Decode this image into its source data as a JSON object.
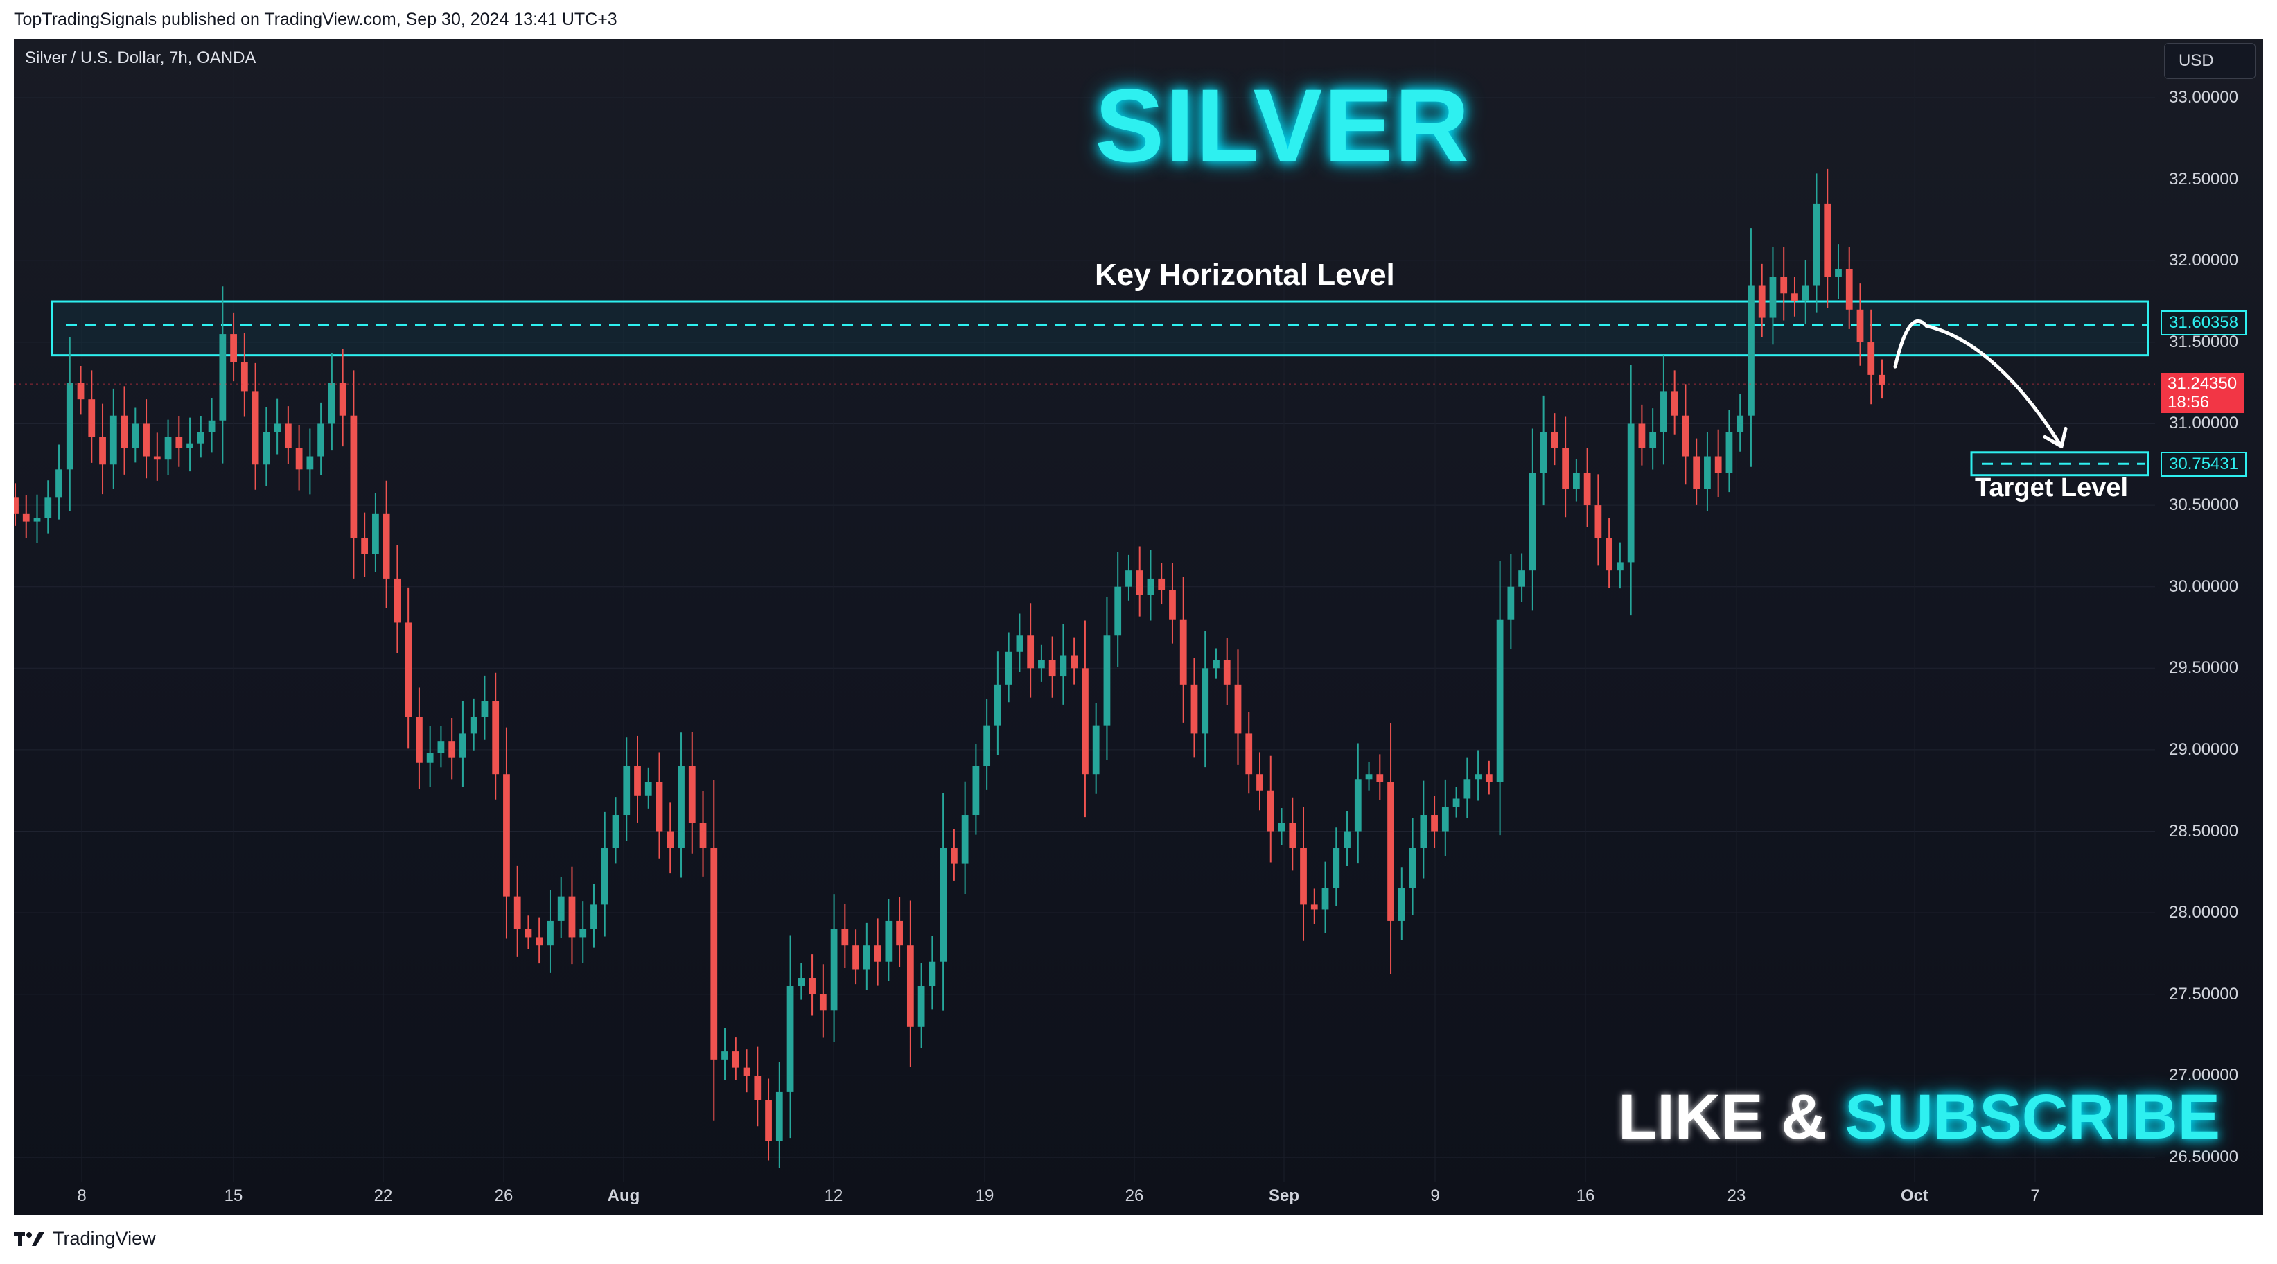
{
  "header": {
    "publish_text": "TopTradingSignals published on TradingView.com, Sep 30, 2024 13:41 UTC+3"
  },
  "chart": {
    "symbol_label": "Silver / U.S. Dollar, 7h, OANDA",
    "currency": "USD",
    "title": "SILVER",
    "key_level_label": "Key Horizontal Level",
    "target_label": "Target Level",
    "cta_white": "LIKE & ",
    "cta_cyan": "SUBSCRIBE",
    "last_price": "31.24350",
    "countdown": "18:56",
    "key_level_price": "31.60358",
    "target_price": "30.75431",
    "colors": {
      "up": "#26a69a",
      "down": "#ef5350",
      "accent": "#2ef0f0",
      "background": "#131722"
    }
  },
  "footer": {
    "logo_text": "TradingView"
  },
  "chart_data": {
    "type": "candlestick",
    "title": "SILVER",
    "symbol": "Silver / U.S. Dollar, 7h, OANDA",
    "ylim": [
      26.4,
      33.3
    ],
    "y_ticks": [
      "33.00000",
      "32.50000",
      "32.00000",
      "31.50000",
      "31.00000",
      "30.50000",
      "30.00000",
      "29.50000",
      "29.00000",
      "28.50000",
      "28.00000",
      "27.50000",
      "27.00000",
      "26.50000"
    ],
    "x_ticks": [
      "8",
      "15",
      "22",
      "26",
      "Aug",
      "12",
      "19",
      "26",
      "Sep",
      "9",
      "16",
      "23",
      "Oct",
      "7"
    ],
    "key_level": 31.60358,
    "key_zone": [
      31.42,
      31.75
    ],
    "target_level": 30.75431,
    "last_price": 31.2435,
    "series": [
      {
        "name": "",
        "close": [
          30.45,
          30.4,
          30.42,
          30.55,
          30.72,
          31.25,
          31.15,
          30.92,
          30.75,
          31.05,
          30.85,
          31.0,
          30.8,
          30.78,
          30.92,
          30.85,
          30.88,
          30.95,
          31.02,
          31.55,
          31.38,
          31.2,
          30.75,
          30.95,
          31.0,
          30.85,
          30.72,
          30.8,
          31.0,
          31.25,
          31.05,
          30.3,
          30.2,
          30.45,
          30.05,
          29.78,
          29.2,
          28.92,
          28.98,
          29.05,
          28.95,
          29.1,
          29.2,
          29.3,
          28.85,
          28.1,
          27.9,
          27.85,
          27.8,
          27.95,
          28.1,
          27.85,
          27.9,
          28.05,
          28.4,
          28.6,
          28.9,
          28.72,
          28.8,
          28.5,
          28.4,
          28.9,
          28.55,
          28.4,
          27.1,
          27.15,
          27.05,
          27.0,
          26.85,
          26.6,
          26.9,
          27.55,
          27.6,
          27.5,
          27.4,
          27.9,
          27.8,
          27.65,
          27.8,
          27.7,
          27.95,
          27.8,
          27.3,
          27.55,
          27.7,
          28.4,
          28.3,
          28.6,
          28.9,
          29.15,
          29.4,
          29.6,
          29.7,
          29.5,
          29.55,
          29.45,
          29.58,
          29.5,
          28.85,
          29.15,
          29.7,
          30.0,
          30.1,
          29.95,
          30.05,
          29.98,
          29.8,
          29.4,
          29.1,
          29.5,
          29.55,
          29.4,
          29.1,
          28.85,
          28.75,
          28.5,
          28.55,
          28.4,
          28.05,
          28.02,
          28.15,
          28.4,
          28.5,
          28.82,
          28.85,
          28.8,
          27.95,
          28.15,
          28.4,
          28.6,
          28.5,
          28.65,
          28.7,
          28.82,
          28.85,
          28.8,
          29.8,
          30.0,
          30.1,
          30.7,
          30.95,
          30.85,
          30.6,
          30.7,
          30.5,
          30.3,
          30.1,
          30.15,
          31.0,
          30.85,
          30.95,
          31.2,
          31.05,
          30.8,
          30.6,
          30.8,
          30.7,
          30.95,
          31.05,
          31.85,
          31.65,
          31.9,
          31.8,
          31.75,
          31.85,
          32.35,
          31.9,
          31.95,
          31.7,
          31.5,
          31.3,
          31.24
        ]
      }
    ]
  }
}
